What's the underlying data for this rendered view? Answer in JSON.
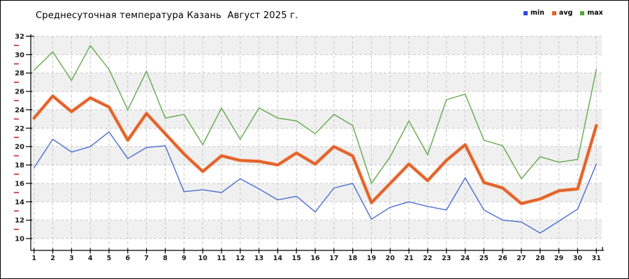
{
  "title": "Среднесуточная температура Казань  Август 2025 г.",
  "legend": {
    "items": [
      {
        "label": "min",
        "color": "#2e4bd7"
      },
      {
        "label": "avg",
        "color": "#e2622a"
      },
      {
        "label": "max",
        "color": "#52a63c"
      }
    ]
  },
  "colors": {
    "plot_band_gray": "#f0f0f0",
    "gridline": "#c9c9c9",
    "axis": "#000000",
    "minor_tick_red": "#c22a2a"
  },
  "chart_data": {
    "type": "line",
    "title": "Среднесуточная температура Казань  Август 2025 г.",
    "xlabel": "",
    "ylabel": "",
    "x": [
      1,
      2,
      3,
      4,
      5,
      6,
      7,
      8,
      9,
      10,
      11,
      12,
      13,
      14,
      15,
      16,
      17,
      18,
      19,
      20,
      21,
      22,
      23,
      24,
      25,
      26,
      27,
      28,
      29,
      30,
      31
    ],
    "ylim": [
      10,
      32
    ],
    "y_tick_step": 2,
    "y_minor_ticks_step": 1,
    "grid": "dashed",
    "legend_position": "top-right",
    "series": [
      {
        "name": "min",
        "color": "#4a6ed0",
        "stroke_width": 1.4,
        "values": [
          17.7,
          20.8,
          19.4,
          20.0,
          21.6,
          18.7,
          19.9,
          20.1,
          15.1,
          15.3,
          15.0,
          16.5,
          15.4,
          14.2,
          14.6,
          12.9,
          15.5,
          16.0,
          12.1,
          13.4,
          14.0,
          13.5,
          13.1,
          16.6,
          13.1,
          12.0,
          11.8,
          10.6,
          11.9,
          13.2,
          18.1
        ]
      },
      {
        "name": "avg",
        "color": "#e2622a",
        "stroke_width": 3.8,
        "values": [
          23.1,
          25.5,
          23.8,
          25.3,
          24.3,
          20.7,
          23.6,
          21.4,
          19.2,
          17.3,
          19.0,
          18.5,
          18.4,
          18.0,
          19.3,
          18.1,
          20.0,
          19.0,
          13.9,
          16.0,
          18.1,
          16.3,
          18.5,
          20.2,
          16.1,
          15.5,
          13.8,
          14.3,
          15.2,
          15.4,
          22.3
        ]
      },
      {
        "name": "max",
        "color": "#61a94b",
        "stroke_width": 1.4,
        "values": [
          28.3,
          30.3,
          27.2,
          31.0,
          28.4,
          24.0,
          28.2,
          23.1,
          23.5,
          20.2,
          24.2,
          20.8,
          24.2,
          23.1,
          22.8,
          21.4,
          23.5,
          22.3,
          16.0,
          18.9,
          22.8,
          19.1,
          25.1,
          25.7,
          20.7,
          20.1,
          16.5,
          18.9,
          18.3,
          18.6,
          28.4
        ]
      }
    ]
  }
}
